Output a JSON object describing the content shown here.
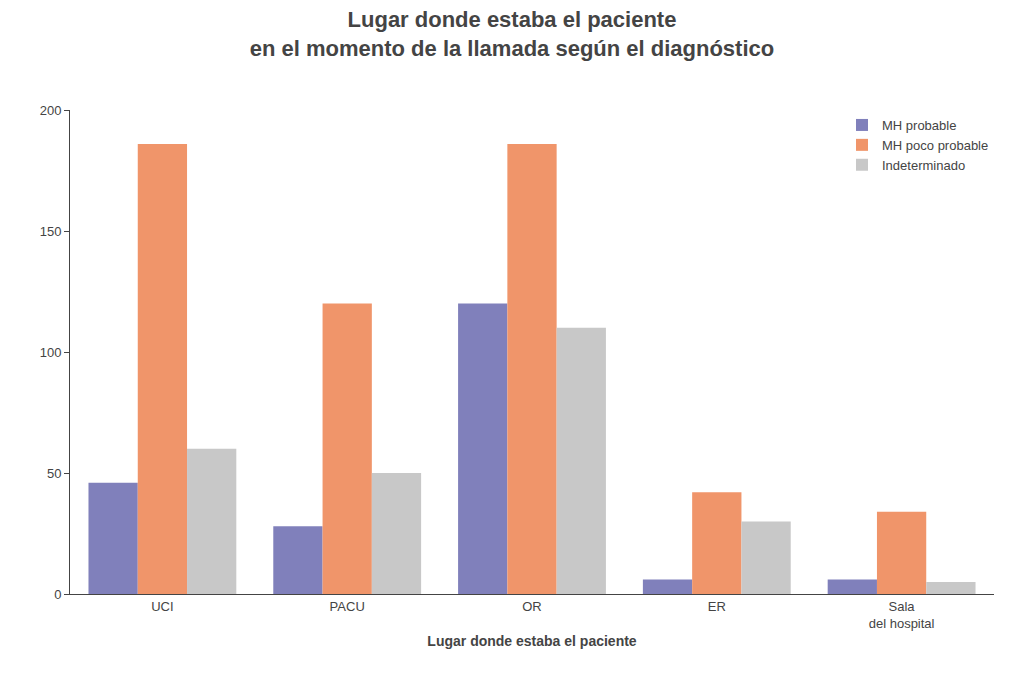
{
  "chart_data": {
    "type": "bar",
    "title": "Lugar donde estaba el paciente\nen el momento de la llamada según el diagnóstico",
    "xlabel": "Lugar donde estaba el paciente",
    "categories": [
      "UCI",
      "PACU",
      "OR",
      "ER",
      "Sala\ndel hospital"
    ],
    "series": [
      {
        "name": "MH probable",
        "color": "#8080bb",
        "values": [
          46,
          28,
          120,
          6,
          6
        ]
      },
      {
        "name": "MH poco probable",
        "color": "#f0956a",
        "values": [
          186,
          120,
          186,
          42,
          34
        ]
      },
      {
        "name": "Indeterminado",
        "color": "#c8c8c8",
        "values": [
          60,
          50,
          110,
          30,
          5
        ]
      }
    ],
    "ylim": [
      0,
      200
    ],
    "yticks": [
      0,
      50,
      100,
      150,
      200
    ],
    "grid": false,
    "legend": "upper right"
  }
}
